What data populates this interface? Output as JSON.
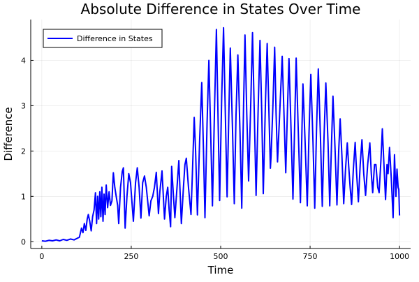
{
  "chart_data": {
    "type": "line",
    "title": "Absolute Difference in States Over Time",
    "xlabel": "Time",
    "ylabel": "Difference",
    "xlim": [
      -31,
      1031
    ],
    "ylim": [
      -0.15,
      4.9
    ],
    "xticks": [
      0,
      250,
      500,
      750,
      1000
    ],
    "yticks": [
      0,
      1,
      2,
      3,
      4
    ],
    "grid": true,
    "legend_position": "top-left",
    "series": [
      {
        "name": "Difference in States",
        "color": "#0000ff",
        "points": [
          [
            0,
            0.02
          ],
          [
            10,
            0.01
          ],
          [
            20,
            0.03
          ],
          [
            30,
            0.02
          ],
          [
            40,
            0.04
          ],
          [
            50,
            0.02
          ],
          [
            60,
            0.05
          ],
          [
            70,
            0.03
          ],
          [
            80,
            0.06
          ],
          [
            90,
            0.04
          ],
          [
            100,
            0.08
          ],
          [
            105,
            0.1
          ],
          [
            111,
            0.3
          ],
          [
            115,
            0.2
          ],
          [
            119,
            0.4
          ],
          [
            123,
            0.25
          ],
          [
            127,
            0.5
          ],
          [
            130,
            0.6
          ],
          [
            134,
            0.45
          ],
          [
            138,
            0.24
          ],
          [
            142,
            0.55
          ],
          [
            146,
            0.7
          ],
          [
            150,
            1.08
          ],
          [
            153,
            0.4
          ],
          [
            156,
            1.0
          ],
          [
            159,
            0.5
          ],
          [
            162,
            1.1
          ],
          [
            165,
            0.55
          ],
          [
            168,
            1.2
          ],
          [
            171,
            0.45
          ],
          [
            174,
            1.05
          ],
          [
            177,
            0.6
          ],
          [
            180,
            1.25
          ],
          [
            184,
            0.75
          ],
          [
            188,
            1.1
          ],
          [
            192,
            0.8
          ],
          [
            196,
            0.9
          ],
          [
            200,
            1.52
          ],
          [
            204,
            1.2
          ],
          [
            208,
            1.0
          ],
          [
            212,
            0.8
          ],
          [
            215,
            0.4
          ],
          [
            220,
            1.2
          ],
          [
            225,
            1.55
          ],
          [
            228,
            1.63
          ],
          [
            233,
            0.3
          ],
          [
            238,
            1.0
          ],
          [
            243,
            1.5
          ],
          [
            248,
            1.3
          ],
          [
            256,
            0.45
          ],
          [
            262,
            1.3
          ],
          [
            267,
            1.63
          ],
          [
            272,
            1.2
          ],
          [
            277,
            0.52
          ],
          [
            282,
            1.3
          ],
          [
            287,
            1.45
          ],
          [
            292,
            1.2
          ],
          [
            300,
            0.57
          ],
          [
            305,
            0.9
          ],
          [
            310,
            1.0
          ],
          [
            315,
            1.2
          ],
          [
            320,
            1.53
          ],
          [
            326,
            0.62
          ],
          [
            330,
            1.1
          ],
          [
            336,
            1.56
          ],
          [
            343,
            0.5
          ],
          [
            348,
            1.0
          ],
          [
            352,
            1.2
          ],
          [
            356,
            0.7
          ],
          [
            360,
            0.33
          ],
          [
            363,
            1.66
          ],
          [
            368,
            1.0
          ],
          [
            372,
            0.53
          ],
          [
            378,
            1.2
          ],
          [
            383,
            1.79
          ],
          [
            390,
            0.4
          ],
          [
            396,
            1.2
          ],
          [
            400,
            1.7
          ],
          [
            404,
            1.84
          ],
          [
            410,
            1.2
          ],
          [
            417,
            0.6
          ],
          [
            421,
            1.5
          ],
          [
            424,
            2.25
          ],
          [
            426,
            2.74
          ],
          [
            430,
            2.0
          ],
          [
            435,
            0.59
          ],
          [
            441,
            2.2
          ],
          [
            447,
            3.51
          ],
          [
            452,
            2.0
          ],
          [
            456,
            0.53
          ],
          [
            462,
            2.6
          ],
          [
            467,
            4.0
          ],
          [
            472,
            2.4
          ],
          [
            477,
            0.79
          ],
          [
            483,
            3.0
          ],
          [
            488,
            4.68
          ],
          [
            493,
            2.6
          ],
          [
            497,
            0.91
          ],
          [
            503,
            3.2
          ],
          [
            508,
            4.72
          ],
          [
            513,
            2.8
          ],
          [
            518,
            0.99
          ],
          [
            523,
            2.9
          ],
          [
            527,
            4.27
          ],
          [
            533,
            2.5
          ],
          [
            538,
            0.84
          ],
          [
            543,
            2.8
          ],
          [
            548,
            4.12
          ],
          [
            554,
            2.4
          ],
          [
            559,
            0.74
          ],
          [
            564,
            3.0
          ],
          [
            568,
            4.56
          ],
          [
            573,
            2.8
          ],
          [
            578,
            1.34
          ],
          [
            584,
            3.0
          ],
          [
            589,
            4.61
          ],
          [
            594,
            2.8
          ],
          [
            599,
            1.02
          ],
          [
            605,
            3.0
          ],
          [
            610,
            4.44
          ],
          [
            615,
            2.8
          ],
          [
            619,
            1.06
          ],
          [
            625,
            3.0
          ],
          [
            630,
            4.37
          ],
          [
            635,
            2.8
          ],
          [
            639,
            1.62
          ],
          [
            641,
            1.9
          ],
          [
            646,
            3.0
          ],
          [
            651,
            4.29
          ],
          [
            655,
            2.8
          ],
          [
            659,
            1.76
          ],
          [
            666,
            3.0
          ],
          [
            672,
            4.09
          ],
          [
            677,
            2.8
          ],
          [
            682,
            1.52
          ],
          [
            687,
            3.0
          ],
          [
            691,
            4.04
          ],
          [
            697,
            2.4
          ],
          [
            702,
            0.94
          ],
          [
            707,
            2.6
          ],
          [
            711,
            4.05
          ],
          [
            717,
            2.4
          ],
          [
            723,
            0.86
          ],
          [
            727,
            2.4
          ],
          [
            730,
            3.48
          ],
          [
            736,
            2.2
          ],
          [
            742,
            0.79
          ],
          [
            747,
            2.4
          ],
          [
            752,
            3.69
          ],
          [
            758,
            2.2
          ],
          [
            763,
            0.74
          ],
          [
            768,
            2.5
          ],
          [
            773,
            3.81
          ],
          [
            779,
            2.3
          ],
          [
            784,
            0.78
          ],
          [
            789,
            2.3
          ],
          [
            794,
            3.5
          ],
          [
            800,
            2.2
          ],
          [
            805,
            0.79
          ],
          [
            810,
            2.2
          ],
          [
            814,
            3.21
          ],
          [
            820,
            2.0
          ],
          [
            825,
            0.81
          ],
          [
            830,
            2.0
          ],
          [
            834,
            2.71
          ],
          [
            839,
            1.9
          ],
          [
            844,
            0.84
          ],
          [
            849,
            1.6
          ],
          [
            854,
            2.18
          ],
          [
            858,
            1.65
          ],
          [
            862,
            1.2
          ],
          [
            866,
            0.82
          ],
          [
            871,
            1.6
          ],
          [
            876,
            2.19
          ],
          [
            880,
            1.5
          ],
          [
            885,
            0.88
          ],
          [
            890,
            1.7
          ],
          [
            895,
            2.25
          ],
          [
            900,
            1.5
          ],
          [
            905,
            1.02
          ],
          [
            911,
            1.7
          ],
          [
            917,
            2.18
          ],
          [
            921,
            1.5
          ],
          [
            925,
            1.08
          ],
          [
            930,
            1.7
          ],
          [
            934,
            1.7
          ],
          [
            939,
            1.2
          ],
          [
            943,
            1.08
          ],
          [
            948,
            1.8
          ],
          [
            952,
            2.49
          ],
          [
            957,
            1.6
          ],
          [
            961,
            0.93
          ],
          [
            965,
            1.7
          ],
          [
            968,
            1.5
          ],
          [
            972,
            2.08
          ],
          [
            977,
            1.4
          ],
          [
            982,
            0.53
          ],
          [
            986,
            1.92
          ],
          [
            990,
            1.0
          ],
          [
            993,
            1.6
          ],
          [
            996,
            1.2
          ],
          [
            998,
            1.15
          ],
          [
            1000,
            0.58
          ]
        ]
      }
    ]
  }
}
